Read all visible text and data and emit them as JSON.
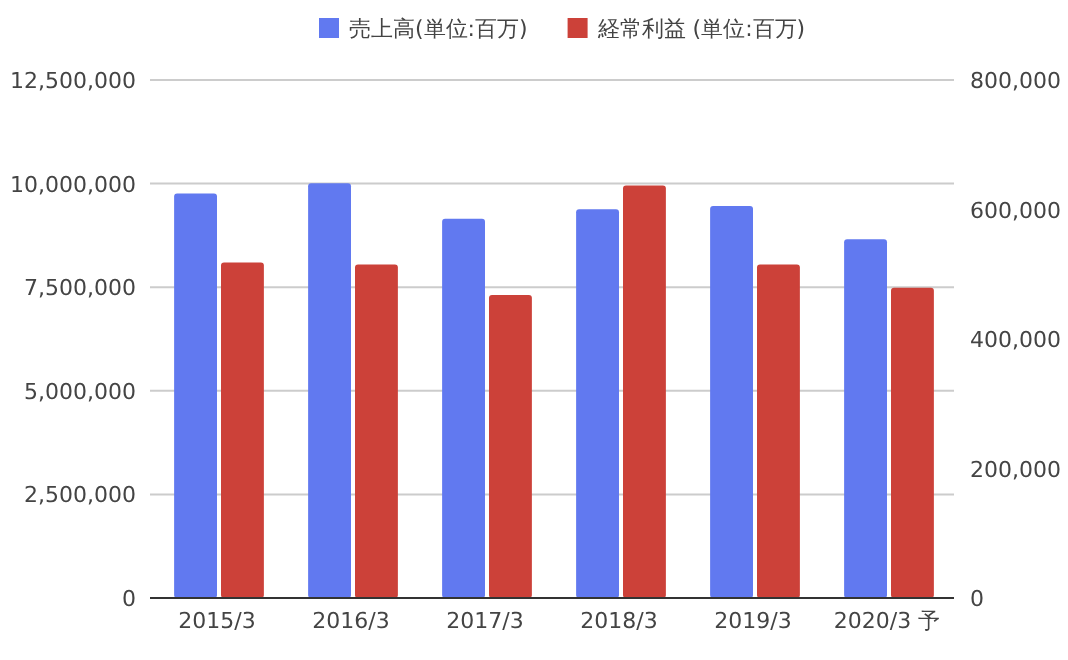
{
  "chart_data": {
    "type": "bar",
    "categories": [
      "2015/3",
      "2016/3",
      "2017/3",
      "2018/3",
      "2019/3",
      "2020/3 予"
    ],
    "series": [
      {
        "name": "売上高(単位:百万)",
        "color": "#6179f0",
        "values": [
          9760000,
          10010000,
          9150000,
          9380000,
          9460000,
          8660000
        ]
      },
      {
        "name": "経常利益 (単位:百万)",
        "color": "#cc4139",
        "axis": "y2",
        "values": [
          518000,
          515000,
          468000,
          637000,
          515000,
          479000
        ]
      }
    ],
    "ylim": [
      0,
      12500000
    ],
    "yticks": [
      0,
      {
        "value": 2500000,
        "label": "2,500,000"
      },
      {
        "value": 5000000,
        "label": "5,000,000"
      },
      {
        "value": 7500000,
        "label": "7,500,000"
      },
      {
        "value": 10000000,
        "label": "10,000,000"
      },
      {
        "value": 12500000,
        "label": "12,500,000"
      }
    ],
    "y2lim": [
      0,
      800000
    ],
    "y2ticks": [
      0,
      {
        "value": 200000,
        "label": "200,000"
      },
      {
        "value": 400000,
        "label": "400,000"
      },
      {
        "value": 600000,
        "label": "600,000"
      },
      {
        "value": 800000,
        "label": "800,000"
      }
    ],
    "grid": true,
    "legend": "top"
  }
}
